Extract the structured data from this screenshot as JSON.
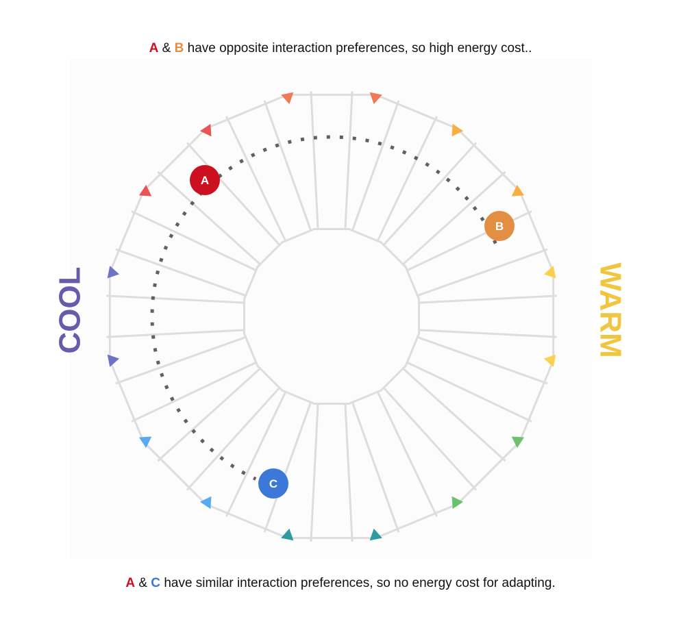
{
  "captions": {
    "top": {
      "a": "A",
      "amp": "&",
      "b": "B",
      "text": "have opposite interaction preferences, so high energy cost.."
    },
    "bottom": {
      "a": "A",
      "amp": "&",
      "c": "C",
      "text": "have similar interaction preferences, so no energy cost for adapting."
    }
  },
  "side_labels": {
    "cool": "COOL",
    "warm": "WARM"
  },
  "markers": {
    "a": {
      "label": "A",
      "color": "#cc1020"
    },
    "b": {
      "label": "B",
      "color": "#e28f44"
    },
    "c": {
      "label": "C",
      "color": "#3c78d8"
    }
  },
  "colors": {
    "a": "#cc1020",
    "b": "#e28f44",
    "c": "#3c78d8",
    "cool": "#6a5aaa",
    "warm": "#f0c540",
    "lines": "#dddddd",
    "dotted_path": "#606060",
    "panel_bg": "#fcfcfc",
    "triangle_palette": [
      "#f07855",
      "#f07855",
      "#f7ae45",
      "#f7ae45",
      "#fbd04a",
      "#fbd04a",
      "#6cc070",
      "#6cc070",
      "#2e9aa0",
      "#2e9aa0",
      "#58aaf0",
      "#58aaf0",
      "#6f73c8",
      "#6f73c8",
      "#ec5358",
      "#ec5358"
    ]
  },
  "wheel": {
    "segments": 16
  }
}
